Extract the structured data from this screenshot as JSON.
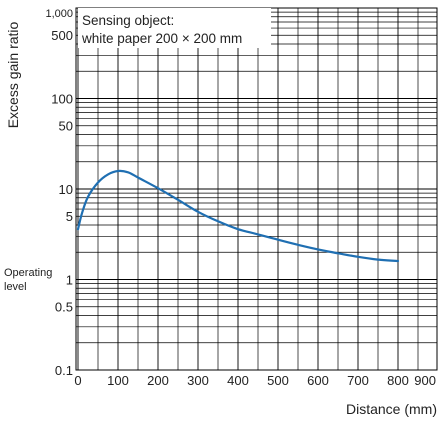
{
  "chart_data": {
    "type": "line",
    "xlabel": "Distance (mm)",
    "ylabel": "Excess gain ratio",
    "x_scale": "linear",
    "y_scale": "log",
    "xlim": [
      0,
      900
    ],
    "ylim": [
      0.1,
      1000
    ],
    "x_ticks": [
      "0",
      "100",
      "200",
      "300",
      "400",
      "500",
      "600",
      "700",
      "800",
      "900"
    ],
    "y_ticks": [
      {
        "value": 0.1,
        "label": "0.1"
      },
      {
        "value": 0.5,
        "label": "0.5"
      },
      {
        "value": 1,
        "label": "1"
      },
      {
        "value": 5,
        "label": "5"
      },
      {
        "value": 10,
        "label": "10"
      },
      {
        "value": 50,
        "label": "50"
      },
      {
        "value": 100,
        "label": "100"
      },
      {
        "value": 500,
        "label": "500"
      },
      {
        "value": 1000,
        "label": "1,000"
      }
    ],
    "operating_level": {
      "value": 1,
      "label_line1": "Operating",
      "label_line2": "level"
    },
    "annotation": {
      "line1": "Sensing object:",
      "line2": "white paper 200 × 200 mm"
    },
    "grid": true,
    "series": [
      {
        "color": "#1f6fb2",
        "points": [
          [
            0,
            3.6
          ],
          [
            10,
            5.4
          ],
          [
            25,
            8.2
          ],
          [
            50,
            11.8
          ],
          [
            75,
            14.5
          ],
          [
            100,
            15.8
          ],
          [
            125,
            15.3
          ],
          [
            150,
            13.4
          ],
          [
            200,
            10.2
          ],
          [
            250,
            7.6
          ],
          [
            300,
            5.6
          ],
          [
            350,
            4.4
          ],
          [
            400,
            3.6
          ],
          [
            450,
            3.15
          ],
          [
            500,
            2.75
          ],
          [
            550,
            2.42
          ],
          [
            600,
            2.15
          ],
          [
            650,
            1.95
          ],
          [
            700,
            1.78
          ],
          [
            750,
            1.66
          ],
          [
            800,
            1.6
          ]
        ]
      }
    ]
  }
}
